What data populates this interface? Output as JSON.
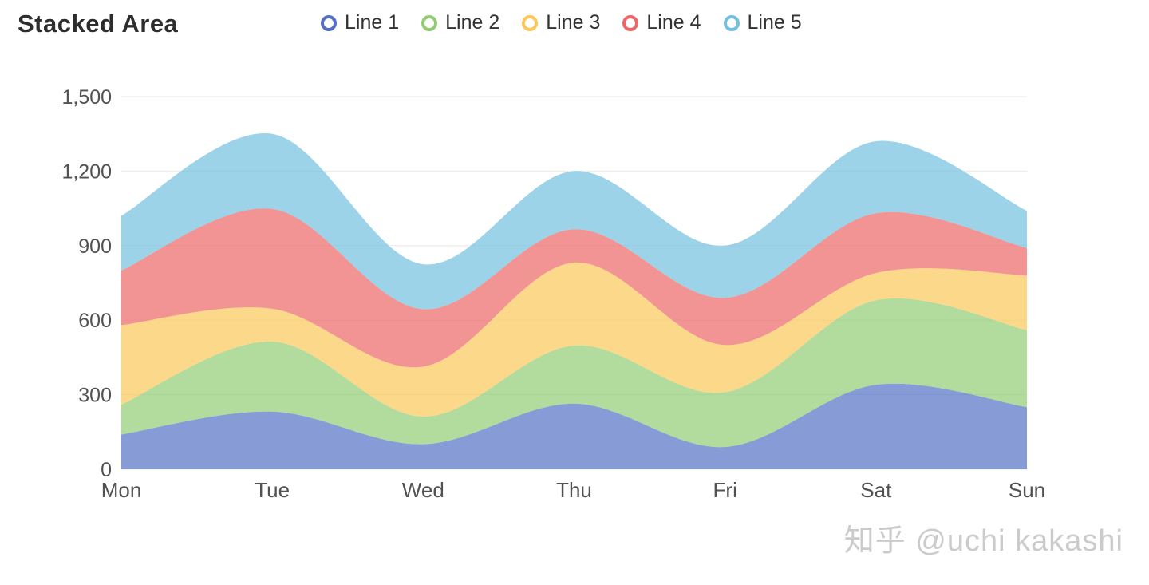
{
  "title": "Stacked Area",
  "watermark": "知乎 @uchi kakashi",
  "legend": [
    {
      "label": "Line 1",
      "color": "#5470c6"
    },
    {
      "label": "Line 2",
      "color": "#91cc75"
    },
    {
      "label": "Line 3",
      "color": "#fac858"
    },
    {
      "label": "Line 4",
      "color": "#ee6666"
    },
    {
      "label": "Line 5",
      "color": "#73c0de"
    }
  ],
  "chart_data": {
    "type": "area",
    "stacked": true,
    "smooth": true,
    "title": "Stacked Area",
    "xlabel": "",
    "ylabel": "",
    "categories": [
      "Mon",
      "Tue",
      "Wed",
      "Thu",
      "Fri",
      "Sat",
      "Sun"
    ],
    "series": [
      {
        "name": "Line 1",
        "color": "#5470c6",
        "values": [
          140,
          232,
          101,
          264,
          90,
          340,
          250
        ]
      },
      {
        "name": "Line 2",
        "color": "#91cc75",
        "values": [
          120,
          282,
          111,
          234,
          220,
          340,
          310
        ]
      },
      {
        "name": "Line 3",
        "color": "#fac858",
        "values": [
          320,
          132,
          201,
          334,
          190,
          110,
          220
        ]
      },
      {
        "name": "Line 4",
        "color": "#ee6666",
        "values": [
          220,
          402,
          231,
          134,
          190,
          240,
          110
        ]
      },
      {
        "name": "Line 5",
        "color": "#73c0de",
        "values": [
          220,
          302,
          181,
          234,
          210,
          290,
          150
        ]
      }
    ],
    "ylim": [
      0,
      1500
    ],
    "y_ticks": [
      0,
      300,
      600,
      900,
      1200,
      1500
    ],
    "y_tick_labels": [
      "0",
      "300",
      "600",
      "900",
      "1,200",
      "1,500"
    ],
    "grid": true,
    "legend_position": "top",
    "area_opacity": 0.7,
    "axis_label_color": "#525252",
    "gridline_color": "#e8e8e8"
  }
}
